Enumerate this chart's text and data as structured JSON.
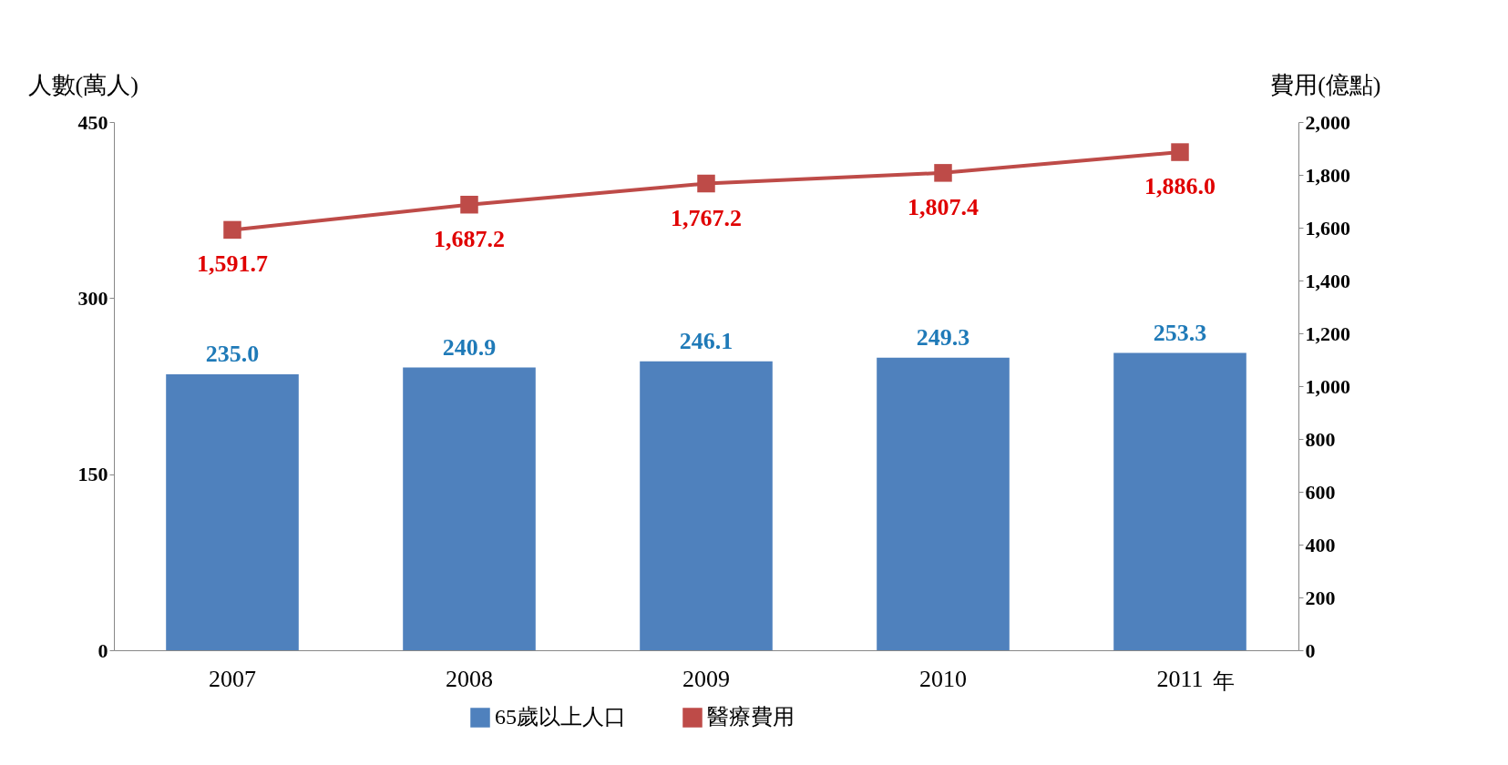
{
  "chart_data": {
    "type": "bar",
    "categories": [
      "2007",
      "2008",
      "2009",
      "2010",
      "2011"
    ],
    "xlabel": "年",
    "ylabel": "人數(萬人)",
    "y2label": "費用(億點)",
    "series": [
      {
        "name": "65歲以上人口",
        "color": "#4f81bd",
        "values": [
          235.0,
          240.9,
          246.1,
          249.3,
          253.3
        ],
        "value_labels": [
          "235.0",
          "240.9",
          "246.1",
          "249.3",
          "253.3"
        ]
      },
      {
        "name": "醫療費用",
        "type": "line",
        "axis": "y2",
        "color": "#be4b48",
        "marker": "square",
        "values": [
          1591.7,
          1687.2,
          1767.2,
          1807.4,
          1886.0
        ],
        "value_labels": [
          "1,591.7",
          "1,687.2",
          "1,767.2",
          "1,807.4",
          "1,886.0"
        ]
      }
    ],
    "ylim": [
      0,
      450
    ],
    "yticks": [
      0,
      150,
      300,
      450
    ],
    "y2lim": [
      0,
      2000
    ],
    "y2ticks": [
      0,
      200,
      400,
      600,
      800,
      {
        "value": 1000,
        "label": "1,000"
      },
      {
        "value": 1200,
        "label": "1,200"
      },
      {
        "value": 1400,
        "label": "1,400"
      },
      {
        "value": 1600,
        "label": "1,600"
      },
      {
        "value": 1800,
        "label": "1,800"
      },
      {
        "value": 2000,
        "label": "2,000"
      }
    ],
    "legend": "bottom",
    "grid": false
  }
}
